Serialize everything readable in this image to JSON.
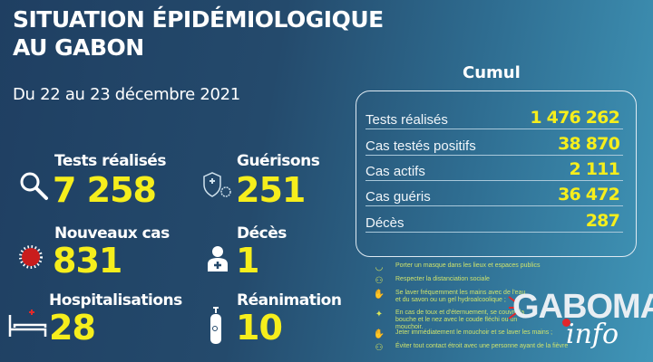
{
  "header": {
    "title_line1": "SITUATION ÉPIDÉMIOLOGIQUE",
    "title_line2": "AU GABON",
    "date": "Du 22 au 23 décembre 2021"
  },
  "stats": [
    {
      "label": "Tests réalisés",
      "value": "7 258",
      "icon": "magnifier-icon"
    },
    {
      "label": "Guérisons",
      "value": "251",
      "icon": "shield-cross-icon"
    },
    {
      "label": "Nouveaux cas",
      "value": "831",
      "icon": "virus-icon"
    },
    {
      "label": "Décès",
      "value": "1",
      "icon": "person-cross-icon"
    },
    {
      "label": "Hospitalisations",
      "value": "28",
      "icon": "hospital-bed-icon"
    },
    {
      "label": "Réanimation",
      "value": "10",
      "icon": "oxygen-tank-icon"
    }
  ],
  "cumul": {
    "title": "Cumul",
    "rows": [
      {
        "label": "Tests réalisés",
        "value": "1 476 262"
      },
      {
        "label": "Cas testés positifs",
        "value": "38 870"
      },
      {
        "label": "Cas actifs",
        "value": "2 111"
      },
      {
        "label": "Cas guéris",
        "value": "36 472"
      },
      {
        "label": "Décès",
        "value": "287"
      }
    ]
  },
  "tips": [
    "Porter un masque dans les lieux et espaces publics",
    "Respecter la distanciation sociale",
    "Se laver fréquemment les mains avec de l'eau et du savon ou un gel hydroalcoolique ;",
    "En cas de toux et d'éternuement, se couvrir la bouche et le nez avec le coude fléchi ou un mouchoir.",
    "Jeter immédiatement le mouchoir et se laver les mains ;",
    "Éviter tout contact étroit avec une personne ayant de la fièvre"
  ],
  "logo": {
    "name": "GABOMA",
    "sub": "info"
  },
  "colors": {
    "accent": "#f6ee1c",
    "tips": "#cfe36c"
  }
}
